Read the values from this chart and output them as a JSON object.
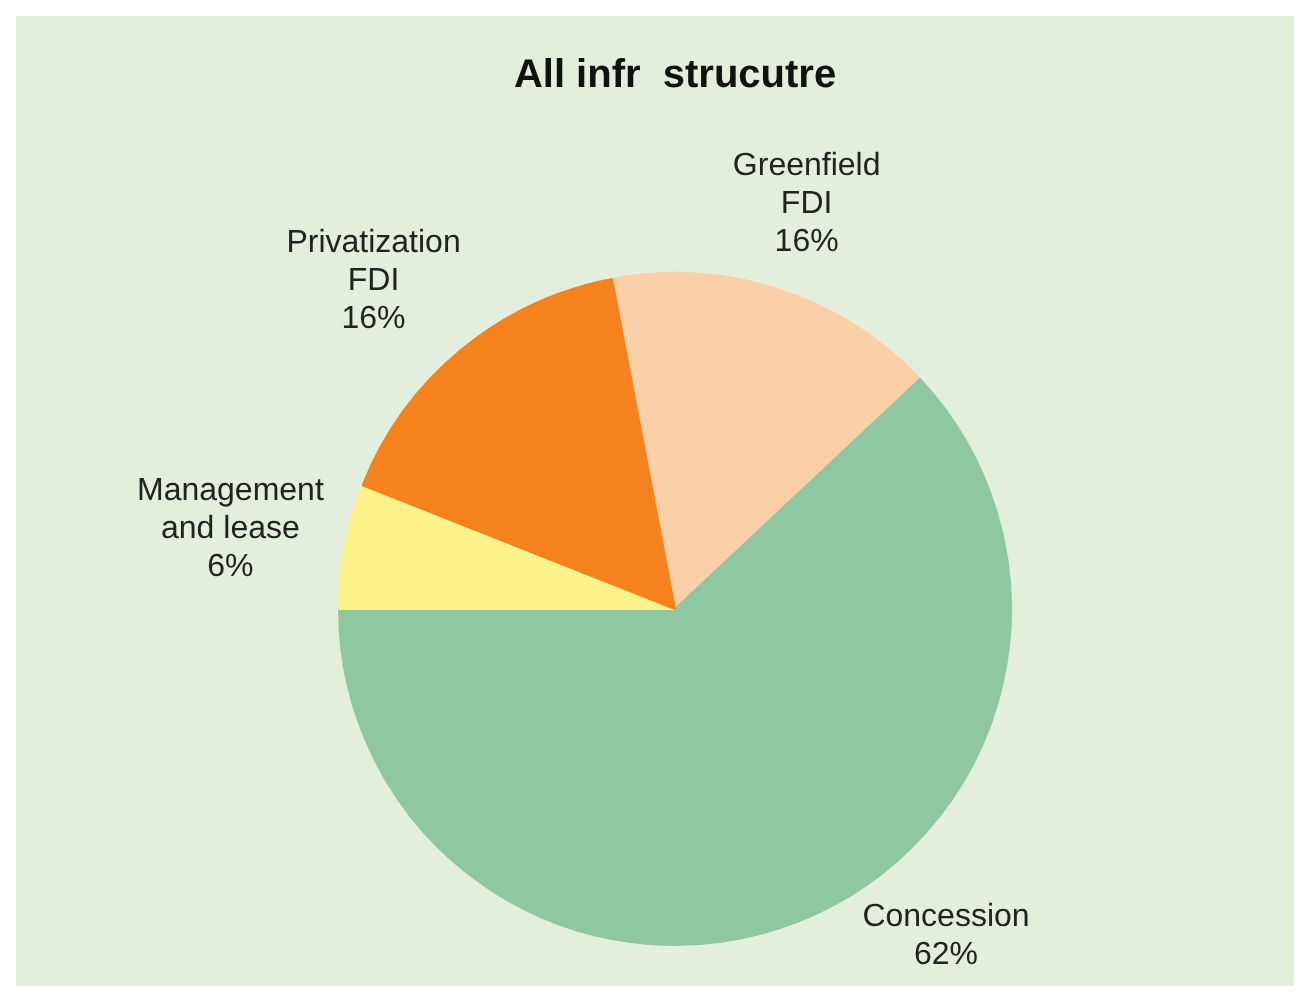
{
  "chart_data": {
    "type": "pie",
    "title": "All infr  strucutre",
    "categories": [
      "Greenfield FDI",
      "Concession",
      "Management and lease",
      "Privatization FDI"
    ],
    "values": [
      16,
      62,
      6,
      16
    ],
    "value_labels": [
      "16%",
      "62%",
      "6%",
      "16%"
    ],
    "colors": [
      "#f9cfa8",
      "#8fc7a3",
      "#fbf28a",
      "#f5821f"
    ],
    "legend": false
  }
}
